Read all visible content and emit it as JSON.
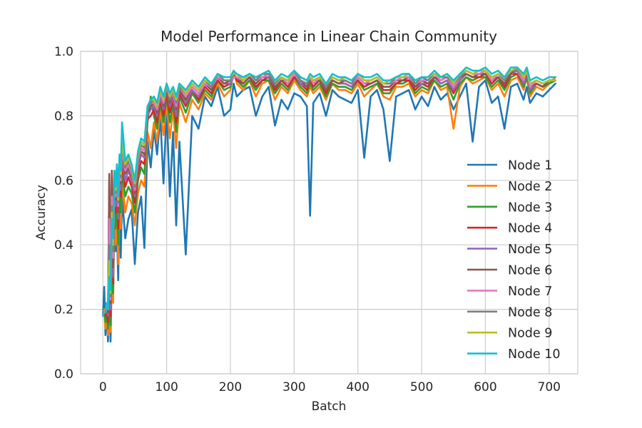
{
  "chart_data": {
    "type": "line",
    "title": "Model Performance in Linear Chain Community",
    "xlabel": "Batch",
    "ylabel": "Accuracy",
    "xlim": [
      -35,
      745
    ],
    "ylim": [
      0.0,
      1.0
    ],
    "xticks": [
      0,
      100,
      200,
      300,
      400,
      500,
      600,
      700
    ],
    "yticks": [
      0.0,
      0.2,
      0.4,
      0.6,
      0.8,
      1.0
    ],
    "xtick_labels": [
      "0",
      "100",
      "200",
      "300",
      "400",
      "500",
      "600",
      "700"
    ],
    "ytick_labels": [
      "0.0",
      "0.2",
      "0.4",
      "0.6",
      "0.8",
      "1.0"
    ],
    "grid": true,
    "legend_position": "lower-right",
    "x": [
      0,
      2,
      4,
      6,
      8,
      10,
      12,
      14,
      16,
      18,
      20,
      22,
      24,
      26,
      28,
      30,
      35,
      40,
      45,
      50,
      55,
      60,
      65,
      70,
      75,
      80,
      85,
      90,
      95,
      100,
      105,
      110,
      115,
      120,
      130,
      140,
      150,
      160,
      170,
      180,
      190,
      200,
      205,
      210,
      220,
      230,
      240,
      250,
      260,
      270,
      280,
      290,
      300,
      310,
      320,
      325,
      330,
      340,
      350,
      360,
      370,
      380,
      390,
      400,
      410,
      420,
      430,
      440,
      450,
      460,
      470,
      480,
      490,
      500,
      510,
      520,
      530,
      540,
      550,
      560,
      570,
      580,
      590,
      600,
      610,
      620,
      630,
      640,
      650,
      660,
      665,
      670,
      680,
      690,
      700,
      710
    ],
    "series": [
      {
        "name": "Node 1",
        "color": "#1f77b4",
        "values": [
          0.18,
          0.27,
          0.12,
          0.19,
          0.1,
          0.25,
          0.1,
          0.32,
          0.24,
          0.52,
          0.38,
          0.45,
          0.29,
          0.52,
          0.36,
          0.55,
          0.42,
          0.48,
          0.51,
          0.34,
          0.5,
          0.55,
          0.39,
          0.72,
          0.64,
          0.76,
          0.68,
          0.8,
          0.59,
          0.82,
          0.55,
          0.75,
          0.46,
          0.72,
          0.37,
          0.8,
          0.76,
          0.86,
          0.83,
          0.89,
          0.8,
          0.82,
          0.9,
          0.86,
          0.88,
          0.89,
          0.8,
          0.86,
          0.89,
          0.77,
          0.85,
          0.82,
          0.87,
          0.86,
          0.83,
          0.49,
          0.84,
          0.87,
          0.8,
          0.88,
          0.86,
          0.85,
          0.84,
          0.88,
          0.67,
          0.86,
          0.88,
          0.82,
          0.66,
          0.86,
          0.87,
          0.88,
          0.82,
          0.86,
          0.83,
          0.89,
          0.85,
          0.87,
          0.82,
          0.86,
          0.9,
          0.72,
          0.89,
          0.91,
          0.84,
          0.86,
          0.76,
          0.89,
          0.9,
          0.85,
          0.89,
          0.84,
          0.87,
          0.86,
          0.88,
          0.9
        ]
      },
      {
        "name": "Node 2",
        "color": "#ff7f0e",
        "values": [
          0.18,
          0.2,
          0.14,
          0.18,
          0.12,
          0.2,
          0.13,
          0.3,
          0.22,
          0.55,
          0.4,
          0.5,
          0.34,
          0.54,
          0.45,
          0.6,
          0.5,
          0.55,
          0.53,
          0.46,
          0.56,
          0.6,
          0.58,
          0.75,
          0.7,
          0.78,
          0.72,
          0.82,
          0.74,
          0.84,
          0.73,
          0.82,
          0.7,
          0.84,
          0.78,
          0.85,
          0.82,
          0.87,
          0.85,
          0.9,
          0.86,
          0.88,
          0.94,
          0.9,
          0.88,
          0.91,
          0.86,
          0.9,
          0.91,
          0.85,
          0.89,
          0.87,
          0.91,
          0.88,
          0.86,
          0.89,
          0.87,
          0.89,
          0.85,
          0.9,
          0.88,
          0.88,
          0.87,
          0.9,
          0.86,
          0.88,
          0.9,
          0.86,
          0.85,
          0.89,
          0.89,
          0.9,
          0.86,
          0.88,
          0.87,
          0.91,
          0.88,
          0.89,
          0.76,
          0.89,
          0.92,
          0.9,
          0.91,
          0.92,
          0.88,
          0.9,
          0.86,
          0.91,
          0.92,
          0.88,
          0.92,
          0.86,
          0.89,
          0.88,
          0.9,
          0.92
        ]
      },
      {
        "name": "Node 3",
        "color": "#2ca02c",
        "values": [
          0.18,
          0.19,
          0.16,
          0.2,
          0.14,
          0.22,
          0.15,
          0.36,
          0.25,
          0.57,
          0.45,
          0.55,
          0.4,
          0.58,
          0.5,
          0.63,
          0.55,
          0.58,
          0.56,
          0.5,
          0.6,
          0.64,
          0.62,
          0.78,
          0.86,
          0.8,
          0.76,
          0.84,
          0.78,
          0.86,
          0.78,
          0.84,
          0.75,
          0.86,
          0.81,
          0.87,
          0.84,
          0.88,
          0.86,
          0.91,
          0.88,
          0.89,
          0.93,
          0.91,
          0.89,
          0.91,
          0.88,
          0.91,
          0.91,
          0.87,
          0.9,
          0.88,
          0.92,
          0.89,
          0.87,
          0.9,
          0.88,
          0.9,
          0.86,
          0.9,
          0.89,
          0.89,
          0.88,
          0.91,
          0.88,
          0.89,
          0.9,
          0.87,
          0.87,
          0.9,
          0.9,
          0.91,
          0.87,
          0.89,
          0.88,
          0.91,
          0.89,
          0.9,
          0.85,
          0.9,
          0.92,
          0.91,
          0.92,
          0.92,
          0.89,
          0.91,
          0.88,
          0.92,
          0.93,
          0.89,
          0.92,
          0.87,
          0.9,
          0.89,
          0.9,
          0.91
        ]
      },
      {
        "name": "Node 4",
        "color": "#d62728",
        "values": [
          0.18,
          0.19,
          0.18,
          0.21,
          0.16,
          0.6,
          0.18,
          0.62,
          0.28,
          0.59,
          0.5,
          0.58,
          0.45,
          0.61,
          0.55,
          0.66,
          0.58,
          0.61,
          0.58,
          0.53,
          0.62,
          0.66,
          0.65,
          0.79,
          0.8,
          0.82,
          0.78,
          0.85,
          0.8,
          0.87,
          0.81,
          0.85,
          0.78,
          0.87,
          0.83,
          0.88,
          0.85,
          0.89,
          0.87,
          0.91,
          0.89,
          0.9,
          0.93,
          0.91,
          0.9,
          0.92,
          0.89,
          0.91,
          0.92,
          0.88,
          0.91,
          0.89,
          0.92,
          0.9,
          0.88,
          0.91,
          0.89,
          0.91,
          0.87,
          0.91,
          0.9,
          0.9,
          0.89,
          0.91,
          0.89,
          0.9,
          0.91,
          0.88,
          0.88,
          0.9,
          0.91,
          0.91,
          0.88,
          0.9,
          0.89,
          0.92,
          0.9,
          0.91,
          0.87,
          0.91,
          0.93,
          0.92,
          0.92,
          0.93,
          0.9,
          0.92,
          0.89,
          0.93,
          0.93,
          0.9,
          0.93,
          0.88,
          0.9,
          0.89,
          0.91,
          0.91
        ]
      },
      {
        "name": "Node 5",
        "color": "#9467bd",
        "values": [
          0.18,
          0.19,
          0.19,
          0.22,
          0.18,
          0.58,
          0.2,
          0.6,
          0.3,
          0.6,
          0.52,
          0.6,
          0.48,
          0.63,
          0.57,
          0.68,
          0.6,
          0.63,
          0.6,
          0.55,
          0.64,
          0.68,
          0.67,
          0.8,
          0.82,
          0.83,
          0.8,
          0.86,
          0.82,
          0.88,
          0.83,
          0.86,
          0.8,
          0.88,
          0.84,
          0.88,
          0.86,
          0.9,
          0.88,
          0.92,
          0.9,
          0.9,
          0.92,
          0.92,
          0.9,
          0.92,
          0.9,
          0.92,
          0.92,
          0.89,
          0.91,
          0.9,
          0.93,
          0.9,
          0.89,
          0.91,
          0.9,
          0.91,
          0.88,
          0.91,
          0.9,
          0.9,
          0.89,
          0.92,
          0.9,
          0.9,
          0.91,
          0.89,
          0.89,
          0.91,
          0.91,
          0.92,
          0.89,
          0.9,
          0.9,
          0.92,
          0.9,
          0.91,
          0.88,
          0.91,
          0.93,
          0.92,
          0.93,
          0.93,
          0.91,
          0.92,
          0.9,
          0.93,
          0.94,
          0.9,
          0.93,
          0.88,
          0.9,
          0.89,
          0.91,
          0.91
        ]
      },
      {
        "name": "Node 6",
        "color": "#8c564b",
        "values": [
          0.18,
          0.19,
          0.19,
          0.22,
          0.19,
          0.62,
          0.22,
          0.63,
          0.33,
          0.61,
          0.54,
          0.61,
          0.5,
          0.64,
          0.59,
          0.69,
          0.62,
          0.64,
          0.61,
          0.56,
          0.65,
          0.69,
          0.68,
          0.81,
          0.83,
          0.84,
          0.81,
          0.87,
          0.83,
          0.88,
          0.84,
          0.87,
          0.82,
          0.88,
          0.85,
          0.89,
          0.87,
          0.9,
          0.88,
          0.92,
          0.9,
          0.91,
          0.92,
          0.92,
          0.9,
          0.92,
          0.9,
          0.92,
          0.93,
          0.89,
          0.91,
          0.9,
          0.93,
          0.91,
          0.89,
          0.91,
          0.9,
          0.91,
          0.88,
          0.91,
          0.9,
          0.91,
          0.9,
          0.92,
          0.9,
          0.9,
          0.91,
          0.89,
          0.89,
          0.91,
          0.91,
          0.92,
          0.89,
          0.91,
          0.9,
          0.92,
          0.91,
          0.92,
          0.89,
          0.92,
          0.93,
          0.92,
          0.93,
          0.93,
          0.91,
          0.92,
          0.9,
          0.93,
          0.95,
          0.91,
          0.93,
          0.89,
          0.9,
          0.89,
          0.91,
          0.91
        ]
      },
      {
        "name": "Node 7",
        "color": "#e377c2",
        "values": [
          0.18,
          0.19,
          0.19,
          0.22,
          0.2,
          0.48,
          0.23,
          0.55,
          0.36,
          0.62,
          0.55,
          0.62,
          0.52,
          0.65,
          0.6,
          0.7,
          0.63,
          0.65,
          0.62,
          0.57,
          0.66,
          0.7,
          0.69,
          0.82,
          0.84,
          0.84,
          0.82,
          0.87,
          0.84,
          0.89,
          0.85,
          0.87,
          0.83,
          0.89,
          0.86,
          0.89,
          0.87,
          0.9,
          0.89,
          0.92,
          0.91,
          0.91,
          0.92,
          0.92,
          0.91,
          0.93,
          0.91,
          0.92,
          0.93,
          0.9,
          0.92,
          0.9,
          0.93,
          0.91,
          0.9,
          0.92,
          0.9,
          0.92,
          0.89,
          0.92,
          0.91,
          0.91,
          0.9,
          0.92,
          0.9,
          0.91,
          0.92,
          0.9,
          0.9,
          0.91,
          0.92,
          0.92,
          0.9,
          0.91,
          0.91,
          0.93,
          0.91,
          0.92,
          0.89,
          0.92,
          0.94,
          0.93,
          0.93,
          0.94,
          0.91,
          0.93,
          0.91,
          0.94,
          0.94,
          0.91,
          0.94,
          0.89,
          0.91,
          0.9,
          0.91,
          0.91
        ]
      },
      {
        "name": "Node 8",
        "color": "#7f7f7f",
        "values": [
          0.18,
          0.19,
          0.19,
          0.22,
          0.2,
          0.4,
          0.24,
          0.52,
          0.38,
          0.62,
          0.56,
          0.63,
          0.53,
          0.66,
          0.61,
          0.71,
          0.64,
          0.66,
          0.63,
          0.58,
          0.67,
          0.71,
          0.7,
          0.82,
          0.84,
          0.85,
          0.83,
          0.88,
          0.85,
          0.89,
          0.85,
          0.88,
          0.84,
          0.89,
          0.87,
          0.9,
          0.88,
          0.91,
          0.89,
          0.93,
          0.91,
          0.91,
          0.93,
          0.93,
          0.91,
          0.93,
          0.91,
          0.93,
          0.93,
          0.9,
          0.92,
          0.91,
          0.94,
          0.91,
          0.9,
          0.92,
          0.91,
          0.92,
          0.89,
          0.92,
          0.91,
          0.91,
          0.9,
          0.93,
          0.91,
          0.91,
          0.92,
          0.9,
          0.9,
          0.92,
          0.92,
          0.93,
          0.9,
          0.92,
          0.91,
          0.93,
          0.92,
          0.92,
          0.9,
          0.92,
          0.94,
          0.93,
          0.94,
          0.94,
          0.92,
          0.93,
          0.91,
          0.94,
          0.94,
          0.92,
          0.94,
          0.9,
          0.91,
          0.9,
          0.91,
          0.91
        ]
      },
      {
        "name": "Node 9",
        "color": "#bcbd22",
        "values": [
          0.18,
          0.19,
          0.19,
          0.22,
          0.2,
          0.35,
          0.25,
          0.5,
          0.4,
          0.63,
          0.57,
          0.64,
          0.54,
          0.67,
          0.62,
          0.72,
          0.65,
          0.67,
          0.64,
          0.59,
          0.68,
          0.72,
          0.71,
          0.83,
          0.85,
          0.85,
          0.83,
          0.88,
          0.85,
          0.9,
          0.86,
          0.88,
          0.85,
          0.9,
          0.87,
          0.9,
          0.88,
          0.91,
          0.9,
          0.93,
          0.92,
          0.92,
          0.93,
          0.93,
          0.91,
          0.93,
          0.92,
          0.93,
          0.94,
          0.91,
          0.92,
          0.91,
          0.94,
          0.92,
          0.91,
          0.92,
          0.91,
          0.92,
          0.9,
          0.92,
          0.91,
          0.92,
          0.91,
          0.93,
          0.91,
          0.91,
          0.92,
          0.9,
          0.91,
          0.92,
          0.92,
          0.93,
          0.91,
          0.92,
          0.92,
          0.93,
          0.92,
          0.93,
          0.9,
          0.93,
          0.94,
          0.93,
          0.94,
          0.94,
          0.92,
          0.93,
          0.92,
          0.94,
          0.95,
          0.92,
          0.94,
          0.9,
          0.91,
          0.9,
          0.91,
          0.91
        ]
      },
      {
        "name": "Node 10",
        "color": "#17becf",
        "values": [
          0.18,
          0.19,
          0.19,
          0.22,
          0.2,
          0.3,
          0.26,
          0.48,
          0.42,
          0.63,
          0.58,
          0.65,
          0.55,
          0.68,
          0.63,
          0.78,
          0.66,
          0.68,
          0.65,
          0.6,
          0.69,
          0.73,
          0.72,
          0.83,
          0.85,
          0.86,
          0.84,
          0.89,
          0.86,
          0.9,
          0.87,
          0.89,
          0.86,
          0.9,
          0.88,
          0.91,
          0.89,
          0.92,
          0.9,
          0.93,
          0.92,
          0.92,
          0.94,
          0.93,
          0.92,
          0.93,
          0.92,
          0.93,
          0.94,
          0.91,
          0.93,
          0.92,
          0.94,
          0.92,
          0.91,
          0.93,
          0.92,
          0.93,
          0.9,
          0.93,
          0.92,
          0.92,
          0.91,
          0.93,
          0.92,
          0.92,
          0.93,
          0.91,
          0.91,
          0.92,
          0.93,
          0.93,
          0.91,
          0.92,
          0.92,
          0.94,
          0.92,
          0.93,
          0.91,
          0.93,
          0.95,
          0.94,
          0.94,
          0.95,
          0.93,
          0.94,
          0.92,
          0.95,
          0.95,
          0.93,
          0.95,
          0.91,
          0.92,
          0.91,
          0.92,
          0.92
        ]
      }
    ]
  }
}
